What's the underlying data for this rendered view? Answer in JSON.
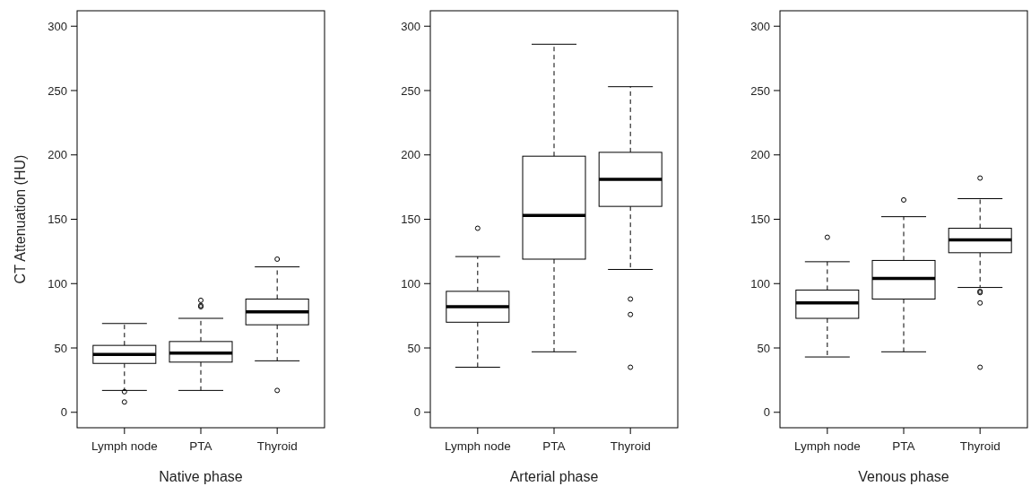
{
  "chart_data": [
    {
      "type": "box",
      "xlabel": "Native phase",
      "ylabel": "CT Attenuation (HU)",
      "categories": [
        "Lymph node",
        "PTA",
        "Thyroid"
      ],
      "ylim": [
        -12,
        312
      ],
      "yticks": [
        0,
        50,
        100,
        150,
        200,
        250,
        300
      ],
      "boxes": [
        {
          "low": 17,
          "q1": 38,
          "median": 45,
          "q3": 52,
          "high": 69,
          "outliers": [
            16,
            8
          ]
        },
        {
          "low": 17,
          "q1": 39,
          "median": 46,
          "q3": 55,
          "high": 73,
          "outliers": [
            82,
            83,
            87
          ]
        },
        {
          "low": 40,
          "q1": 68,
          "median": 78,
          "q3": 88,
          "high": 113,
          "outliers": [
            119,
            17
          ]
        }
      ]
    },
    {
      "type": "box",
      "xlabel": "Arterial phase",
      "categories": [
        "Lymph node",
        "PTA",
        "Thyroid"
      ],
      "ylim": [
        -12,
        312
      ],
      "yticks": [
        0,
        50,
        100,
        150,
        200,
        250,
        300
      ],
      "boxes": [
        {
          "low": 35,
          "q1": 70,
          "median": 82,
          "q3": 94,
          "high": 121,
          "outliers": [
            143
          ]
        },
        {
          "low": 47,
          "q1": 119,
          "median": 153,
          "q3": 199,
          "high": 286
        },
        {
          "low": 111,
          "q1": 160,
          "median": 181,
          "q3": 202,
          "high": 253,
          "outliers": [
            88,
            76,
            35
          ]
        }
      ]
    },
    {
      "type": "box",
      "xlabel": "Venous phase",
      "categories": [
        "Lymph node",
        "PTA",
        "Thyroid"
      ],
      "ylim": [
        -12,
        312
      ],
      "yticks": [
        0,
        50,
        100,
        150,
        200,
        250,
        300
      ],
      "boxes": [
        {
          "low": 43,
          "q1": 73,
          "median": 85,
          "q3": 95,
          "high": 117,
          "outliers": [
            136
          ]
        },
        {
          "low": 47,
          "q1": 88,
          "median": 104,
          "q3": 118,
          "high": 152,
          "outliers": [
            165
          ]
        },
        {
          "low": 97,
          "q1": 124,
          "median": 134,
          "q3": 143,
          "high": 166,
          "outliers": [
            182,
            94,
            93,
            85,
            35
          ]
        }
      ]
    }
  ]
}
